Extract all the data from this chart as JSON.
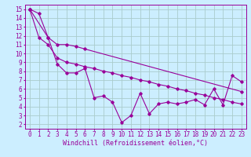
{
  "background_color": "#cceeff",
  "grid_color": "#aacccc",
  "line_color": "#990099",
  "xlabel": "Windchill (Refroidissement éolien,°C)",
  "xlabel_fontsize": 6.0,
  "tick_fontsize": 5.5,
  "xlim": [
    -0.5,
    23.5
  ],
  "ylim": [
    1.5,
    15.5
  ],
  "xticks": [
    0,
    1,
    2,
    3,
    4,
    5,
    6,
    7,
    8,
    9,
    10,
    11,
    12,
    13,
    14,
    15,
    16,
    17,
    18,
    19,
    20,
    21,
    22,
    23
  ],
  "yticks": [
    2,
    3,
    4,
    5,
    6,
    7,
    8,
    9,
    10,
    11,
    12,
    13,
    14,
    15
  ],
  "series1_x": [
    0,
    1,
    2,
    3,
    4,
    5,
    6,
    7,
    8,
    9,
    10,
    11,
    12,
    13,
    14,
    15,
    16,
    17,
    18,
    19,
    20,
    21,
    22,
    23
  ],
  "series1_y": [
    15.0,
    14.5,
    11.8,
    8.8,
    7.8,
    7.8,
    8.3,
    5.0,
    5.2,
    4.5,
    2.2,
    3.0,
    5.5,
    3.2,
    4.3,
    4.5,
    4.3,
    4.5,
    4.8,
    4.2,
    6.0,
    4.2,
    7.5,
    6.8
  ],
  "series2_x": [
    0,
    1,
    2,
    3,
    4,
    5,
    6,
    7,
    8,
    9,
    10,
    11,
    12,
    13,
    14,
    15,
    16,
    17,
    18,
    19,
    20,
    21,
    22,
    23
  ],
  "series2_y": [
    15.0,
    11.8,
    11.0,
    9.5,
    9.0,
    8.8,
    8.5,
    8.3,
    8.0,
    7.8,
    7.5,
    7.3,
    7.0,
    6.8,
    6.5,
    6.3,
    6.0,
    5.8,
    5.5,
    5.3,
    5.0,
    4.8,
    4.5,
    4.3
  ],
  "series3_x": [
    0,
    2,
    3,
    4,
    5,
    6,
    23
  ],
  "series3_y": [
    15.0,
    11.8,
    11.0,
    11.0,
    10.8,
    10.5,
    5.7
  ]
}
